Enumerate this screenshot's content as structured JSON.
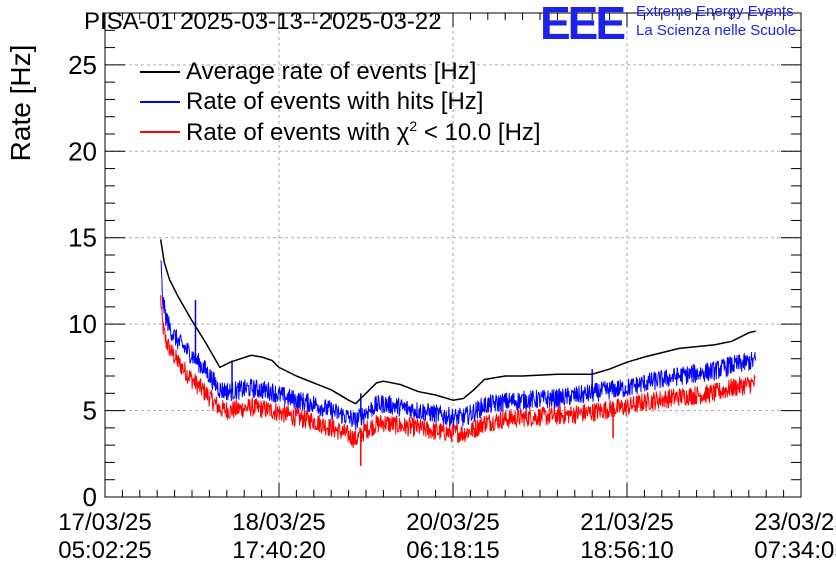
{
  "header": {
    "title": "PISA-01 2025-03-13--2025-03-22",
    "logo_text": "EEE",
    "logo_line1": "Extreme Energy Events",
    "logo_line2": "La Scienza nelle Scuole"
  },
  "legend": {
    "average_label": "Average rate of events [Hz]",
    "hits_label": "Rate of events with hits [Hz]",
    "chi2_label_prefix": "Rate of events with ",
    "chi2_label_symbol": "χ",
    "chi2_label_sup": "2",
    "chi2_label_suffix": " < 10.0 [Hz]"
  },
  "colors": {
    "average": "#000000",
    "hits": "#0000ff",
    "chi2": "#ff0000",
    "grid": "#aaaaaa",
    "logo": "#1d22e8"
  },
  "chart_data": {
    "type": "line",
    "title": "PISA-01 2025-03-13--2025-03-22",
    "xlabel": "",
    "ylabel": "Rate [Hz]",
    "ylim": [
      0,
      28
    ],
    "xlim": [
      0,
      4.0
    ],
    "yticks": [
      0,
      5,
      10,
      15,
      20,
      25
    ],
    "xticks": [
      0,
      1,
      2,
      3,
      4
    ],
    "xtick_labels": [
      [
        "17/03/25",
        "05:02:25"
      ],
      [
        "18/03/25",
        "17:40:20"
      ],
      [
        "20/03/25",
        "06:18:15"
      ],
      [
        "21/03/25",
        "18:56:10"
      ],
      [
        "23/03/25",
        "07:34:05"
      ]
    ],
    "grid": true,
    "legend_position": "top-left",
    "series": [
      {
        "name": "Average rate of events [Hz]",
        "color": "#000000",
        "noise": 0,
        "x": [
          0.32,
          0.34,
          0.37,
          0.42,
          0.5,
          0.58,
          0.66,
          0.72,
          0.78,
          0.84,
          0.9,
          0.96,
          1.0,
          1.1,
          1.2,
          1.3,
          1.4,
          1.44,
          1.5,
          1.56,
          1.6,
          1.7,
          1.8,
          1.9,
          2.0,
          2.06,
          2.12,
          2.18,
          2.3,
          2.4,
          2.6,
          2.8,
          2.9,
          3.0,
          3.1,
          3.3,
          3.5,
          3.6,
          3.7,
          3.74
        ],
        "values": [
          14.9,
          13.6,
          12.6,
          11.6,
          10.2,
          8.9,
          7.5,
          7.8,
          8.0,
          8.2,
          8.1,
          7.9,
          7.5,
          7.0,
          6.6,
          6.2,
          5.6,
          5.4,
          6.0,
          6.6,
          6.7,
          6.5,
          6.1,
          5.9,
          5.6,
          5.7,
          6.2,
          6.8,
          7.0,
          7.0,
          7.1,
          7.1,
          7.4,
          7.8,
          8.1,
          8.6,
          8.8,
          9.0,
          9.5,
          9.6
        ]
      },
      {
        "name": "Rate of events with hits [Hz]",
        "color": "#0000ff",
        "noise": 0.55,
        "x": [
          0.32,
          0.33,
          0.35,
          0.38,
          0.42,
          0.5,
          0.58,
          0.66,
          0.72,
          0.78,
          0.84,
          0.9,
          0.96,
          1.0,
          1.1,
          1.2,
          1.3,
          1.4,
          1.44,
          1.5,
          1.56,
          1.6,
          1.7,
          1.8,
          1.9,
          2.0,
          2.06,
          2.12,
          2.18,
          2.3,
          2.4,
          2.6,
          2.8,
          2.9,
          3.0,
          3.1,
          3.3,
          3.5,
          3.6,
          3.74
        ],
        "values": [
          13.9,
          11.5,
          10.4,
          9.6,
          9.0,
          8.2,
          7.3,
          6.2,
          6.1,
          6.2,
          6.3,
          6.2,
          6.1,
          5.9,
          5.6,
          5.4,
          5.0,
          4.6,
          4.4,
          4.9,
          5.3,
          5.4,
          5.2,
          5.0,
          4.8,
          4.6,
          4.6,
          4.9,
          5.3,
          5.5,
          5.6,
          5.7,
          6.0,
          6.2,
          6.3,
          6.6,
          7.0,
          7.3,
          7.6,
          7.9
        ],
        "spikes": [
          [
            0.52,
            11.4
          ],
          [
            0.73,
            7.9
          ],
          [
            1.47,
            6.0
          ],
          [
            2.8,
            7.4
          ],
          [
            3.58,
            8.1
          ]
        ]
      },
      {
        "name": "Rate of events with χ² < 10.0 [Hz]",
        "color": "#ff0000",
        "noise": 0.55,
        "x": [
          0.32,
          0.33,
          0.35,
          0.38,
          0.42,
          0.5,
          0.58,
          0.66,
          0.72,
          0.78,
          0.84,
          0.9,
          0.96,
          1.0,
          1.1,
          1.2,
          1.3,
          1.4,
          1.44,
          1.5,
          1.56,
          1.6,
          1.7,
          1.8,
          1.9,
          2.0,
          2.06,
          2.12,
          2.18,
          2.3,
          2.4,
          2.6,
          2.8,
          2.9,
          3.0,
          3.1,
          3.3,
          3.5,
          3.6,
          3.74
        ],
        "values": [
          11.5,
          10.0,
          9.0,
          8.4,
          7.8,
          6.8,
          6.0,
          5.1,
          5.0,
          5.1,
          5.2,
          5.1,
          5.0,
          4.9,
          4.6,
          4.4,
          4.0,
          3.6,
          3.3,
          3.9,
          4.2,
          4.3,
          4.1,
          4.0,
          3.8,
          3.7,
          3.7,
          3.9,
          4.3,
          4.5,
          4.6,
          4.7,
          4.9,
          5.1,
          5.2,
          5.5,
          5.8,
          6.0,
          6.3,
          6.6
        ],
        "spikes": [
          [
            1.47,
            1.8
          ],
          [
            2.92,
            3.4
          ]
        ]
      }
    ]
  }
}
